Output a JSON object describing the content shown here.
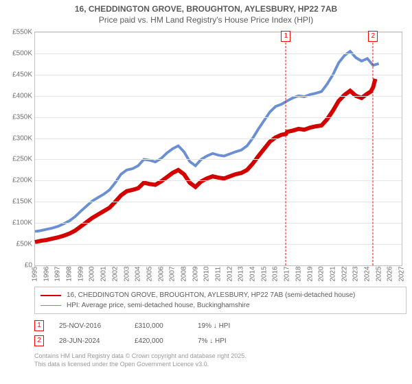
{
  "title": {
    "line1": "16, CHEDDINGTON GROVE, BROUGHTON, AYLESBURY, HP22 7AB",
    "line2": "Price paid vs. HM Land Registry's House Price Index (HPI)"
  },
  "chart": {
    "type": "line",
    "background_color": "#ffffff",
    "grid_color": "#e5e5e5",
    "border_color": "#bfbfbf",
    "axis_font_color": "#707070",
    "axis_font_size": 10,
    "y": {
      "min": 0,
      "max": 550000,
      "step": 50000,
      "ticks": [
        "£0",
        "£50K",
        "£100K",
        "£150K",
        "£200K",
        "£250K",
        "£300K",
        "£350K",
        "£400K",
        "£450K",
        "£500K",
        "£550K"
      ]
    },
    "x": {
      "min": 1995,
      "max": 2027,
      "step": 1,
      "labels": [
        "1995",
        "1996",
        "1997",
        "1998",
        "1999",
        "2000",
        "2001",
        "2002",
        "2003",
        "2004",
        "2005",
        "2006",
        "2007",
        "2008",
        "2009",
        "2010",
        "2011",
        "2012",
        "2013",
        "2014",
        "2015",
        "2016",
        "2017",
        "2018",
        "2019",
        "2020",
        "2021",
        "2022",
        "2023",
        "2024",
        "2025",
        "2026",
        "2027"
      ]
    },
    "series": [
      {
        "id": "price_paid",
        "label": "16, CHEDDINGTON GROVE, BROUGHTON, AYLESBURY, HP22 7AB (semi-detached house)",
        "color": "#d40000",
        "line_width": 2,
        "points": [
          [
            1995,
            55000
          ],
          [
            1995.5,
            58000
          ],
          [
            1996,
            60000
          ],
          [
            1996.5,
            63000
          ],
          [
            1997,
            66000
          ],
          [
            1997.5,
            70000
          ],
          [
            1998,
            75000
          ],
          [
            1998.5,
            82000
          ],
          [
            1999,
            92000
          ],
          [
            1999.5,
            102000
          ],
          [
            2000,
            112000
          ],
          [
            2000.5,
            120000
          ],
          [
            2001,
            128000
          ],
          [
            2001.5,
            136000
          ],
          [
            2002,
            150000
          ],
          [
            2002.5,
            165000
          ],
          [
            2003,
            175000
          ],
          [
            2003.5,
            178000
          ],
          [
            2004,
            182000
          ],
          [
            2004.5,
            195000
          ],
          [
            2005,
            192000
          ],
          [
            2005.5,
            190000
          ],
          [
            2006,
            198000
          ],
          [
            2006.5,
            208000
          ],
          [
            2007,
            218000
          ],
          [
            2007.5,
            225000
          ],
          [
            2008,
            215000
          ],
          [
            2008.5,
            195000
          ],
          [
            2009,
            185000
          ],
          [
            2009.5,
            198000
          ],
          [
            2010,
            205000
          ],
          [
            2010.5,
            210000
          ],
          [
            2011,
            207000
          ],
          [
            2011.5,
            205000
          ],
          [
            2012,
            210000
          ],
          [
            2012.5,
            215000
          ],
          [
            2013,
            218000
          ],
          [
            2013.5,
            225000
          ],
          [
            2014,
            240000
          ],
          [
            2014.5,
            258000
          ],
          [
            2015,
            275000
          ],
          [
            2015.5,
            292000
          ],
          [
            2016,
            302000
          ],
          [
            2016.5,
            308000
          ],
          [
            2016.9,
            310000
          ],
          [
            2017,
            315000
          ],
          [
            2017.5,
            318000
          ],
          [
            2018,
            322000
          ],
          [
            2018.5,
            320000
          ],
          [
            2019,
            325000
          ],
          [
            2019.5,
            328000
          ],
          [
            2020,
            330000
          ],
          [
            2020.5,
            345000
          ],
          [
            2021,
            365000
          ],
          [
            2021.5,
            388000
          ],
          [
            2022,
            402000
          ],
          [
            2022.5,
            412000
          ],
          [
            2023,
            400000
          ],
          [
            2023.5,
            395000
          ],
          [
            2024,
            405000
          ],
          [
            2024.3,
            410000
          ],
          [
            2024.5,
            420000
          ],
          [
            2024.7,
            440000
          ]
        ]
      },
      {
        "id": "hpi",
        "label": "HPI: Average price, semi-detached house, Buckinghamshire",
        "color": "#6a8fd4",
        "line_width": 1.3,
        "points": [
          [
            1995,
            80000
          ],
          [
            1995.5,
            82000
          ],
          [
            1996,
            85000
          ],
          [
            1996.5,
            88000
          ],
          [
            1997,
            92000
          ],
          [
            1997.5,
            98000
          ],
          [
            1998,
            105000
          ],
          [
            1998.5,
            115000
          ],
          [
            1999,
            128000
          ],
          [
            1999.5,
            140000
          ],
          [
            2000,
            152000
          ],
          [
            2000.5,
            160000
          ],
          [
            2001,
            168000
          ],
          [
            2001.5,
            178000
          ],
          [
            2002,
            195000
          ],
          [
            2002.5,
            215000
          ],
          [
            2003,
            225000
          ],
          [
            2003.5,
            228000
          ],
          [
            2004,
            235000
          ],
          [
            2004.5,
            250000
          ],
          [
            2005,
            248000
          ],
          [
            2005.5,
            244000
          ],
          [
            2006,
            252000
          ],
          [
            2006.5,
            265000
          ],
          [
            2007,
            275000
          ],
          [
            2007.5,
            282000
          ],
          [
            2008,
            268000
          ],
          [
            2008.5,
            245000
          ],
          [
            2009,
            235000
          ],
          [
            2009.5,
            250000
          ],
          [
            2010,
            258000
          ],
          [
            2010.5,
            264000
          ],
          [
            2011,
            260000
          ],
          [
            2011.5,
            258000
          ],
          [
            2012,
            263000
          ],
          [
            2012.5,
            268000
          ],
          [
            2013,
            272000
          ],
          [
            2013.5,
            282000
          ],
          [
            2014,
            300000
          ],
          [
            2014.5,
            322000
          ],
          [
            2015,
            342000
          ],
          [
            2015.5,
            362000
          ],
          [
            2016,
            375000
          ],
          [
            2016.5,
            380000
          ],
          [
            2017,
            388000
          ],
          [
            2017.5,
            395000
          ],
          [
            2018,
            400000
          ],
          [
            2018.5,
            398000
          ],
          [
            2019,
            403000
          ],
          [
            2019.5,
            406000
          ],
          [
            2020,
            410000
          ],
          [
            2020.5,
            428000
          ],
          [
            2021,
            450000
          ],
          [
            2021.5,
            478000
          ],
          [
            2022,
            495000
          ],
          [
            2022.5,
            505000
          ],
          [
            2023,
            490000
          ],
          [
            2023.5,
            482000
          ],
          [
            2024,
            488000
          ],
          [
            2024.5,
            472000
          ],
          [
            2025,
            476000
          ]
        ]
      }
    ],
    "markers": [
      {
        "num": "1",
        "x": 2016.9,
        "color": "#ff0000"
      },
      {
        "num": "2",
        "x": 2024.5,
        "color": "#ff0000"
      }
    ]
  },
  "legend": {
    "border_color": "#c8c8c8",
    "rows": [
      {
        "color": "#d40000",
        "width": 2,
        "label": "16, CHEDDINGTON GROVE, BROUGHTON, AYLESBURY, HP22 7AB (semi-detached house)"
      },
      {
        "color": "#6a8fd4",
        "width": 1.3,
        "label": "HPI: Average price, semi-detached house, Buckinghamshire"
      }
    ]
  },
  "footnotes": [
    {
      "num": "1",
      "date": "25-NOV-2016",
      "price": "£310,000",
      "delta": "19% ↓ HPI"
    },
    {
      "num": "2",
      "date": "28-JUN-2024",
      "price": "£420,000",
      "delta": "7% ↓ HPI"
    }
  ],
  "attribution": {
    "line1": "Contains HM Land Registry data © Crown copyright and database right 2025.",
    "line2": "This data is licensed under the Open Government Licence v3.0."
  }
}
